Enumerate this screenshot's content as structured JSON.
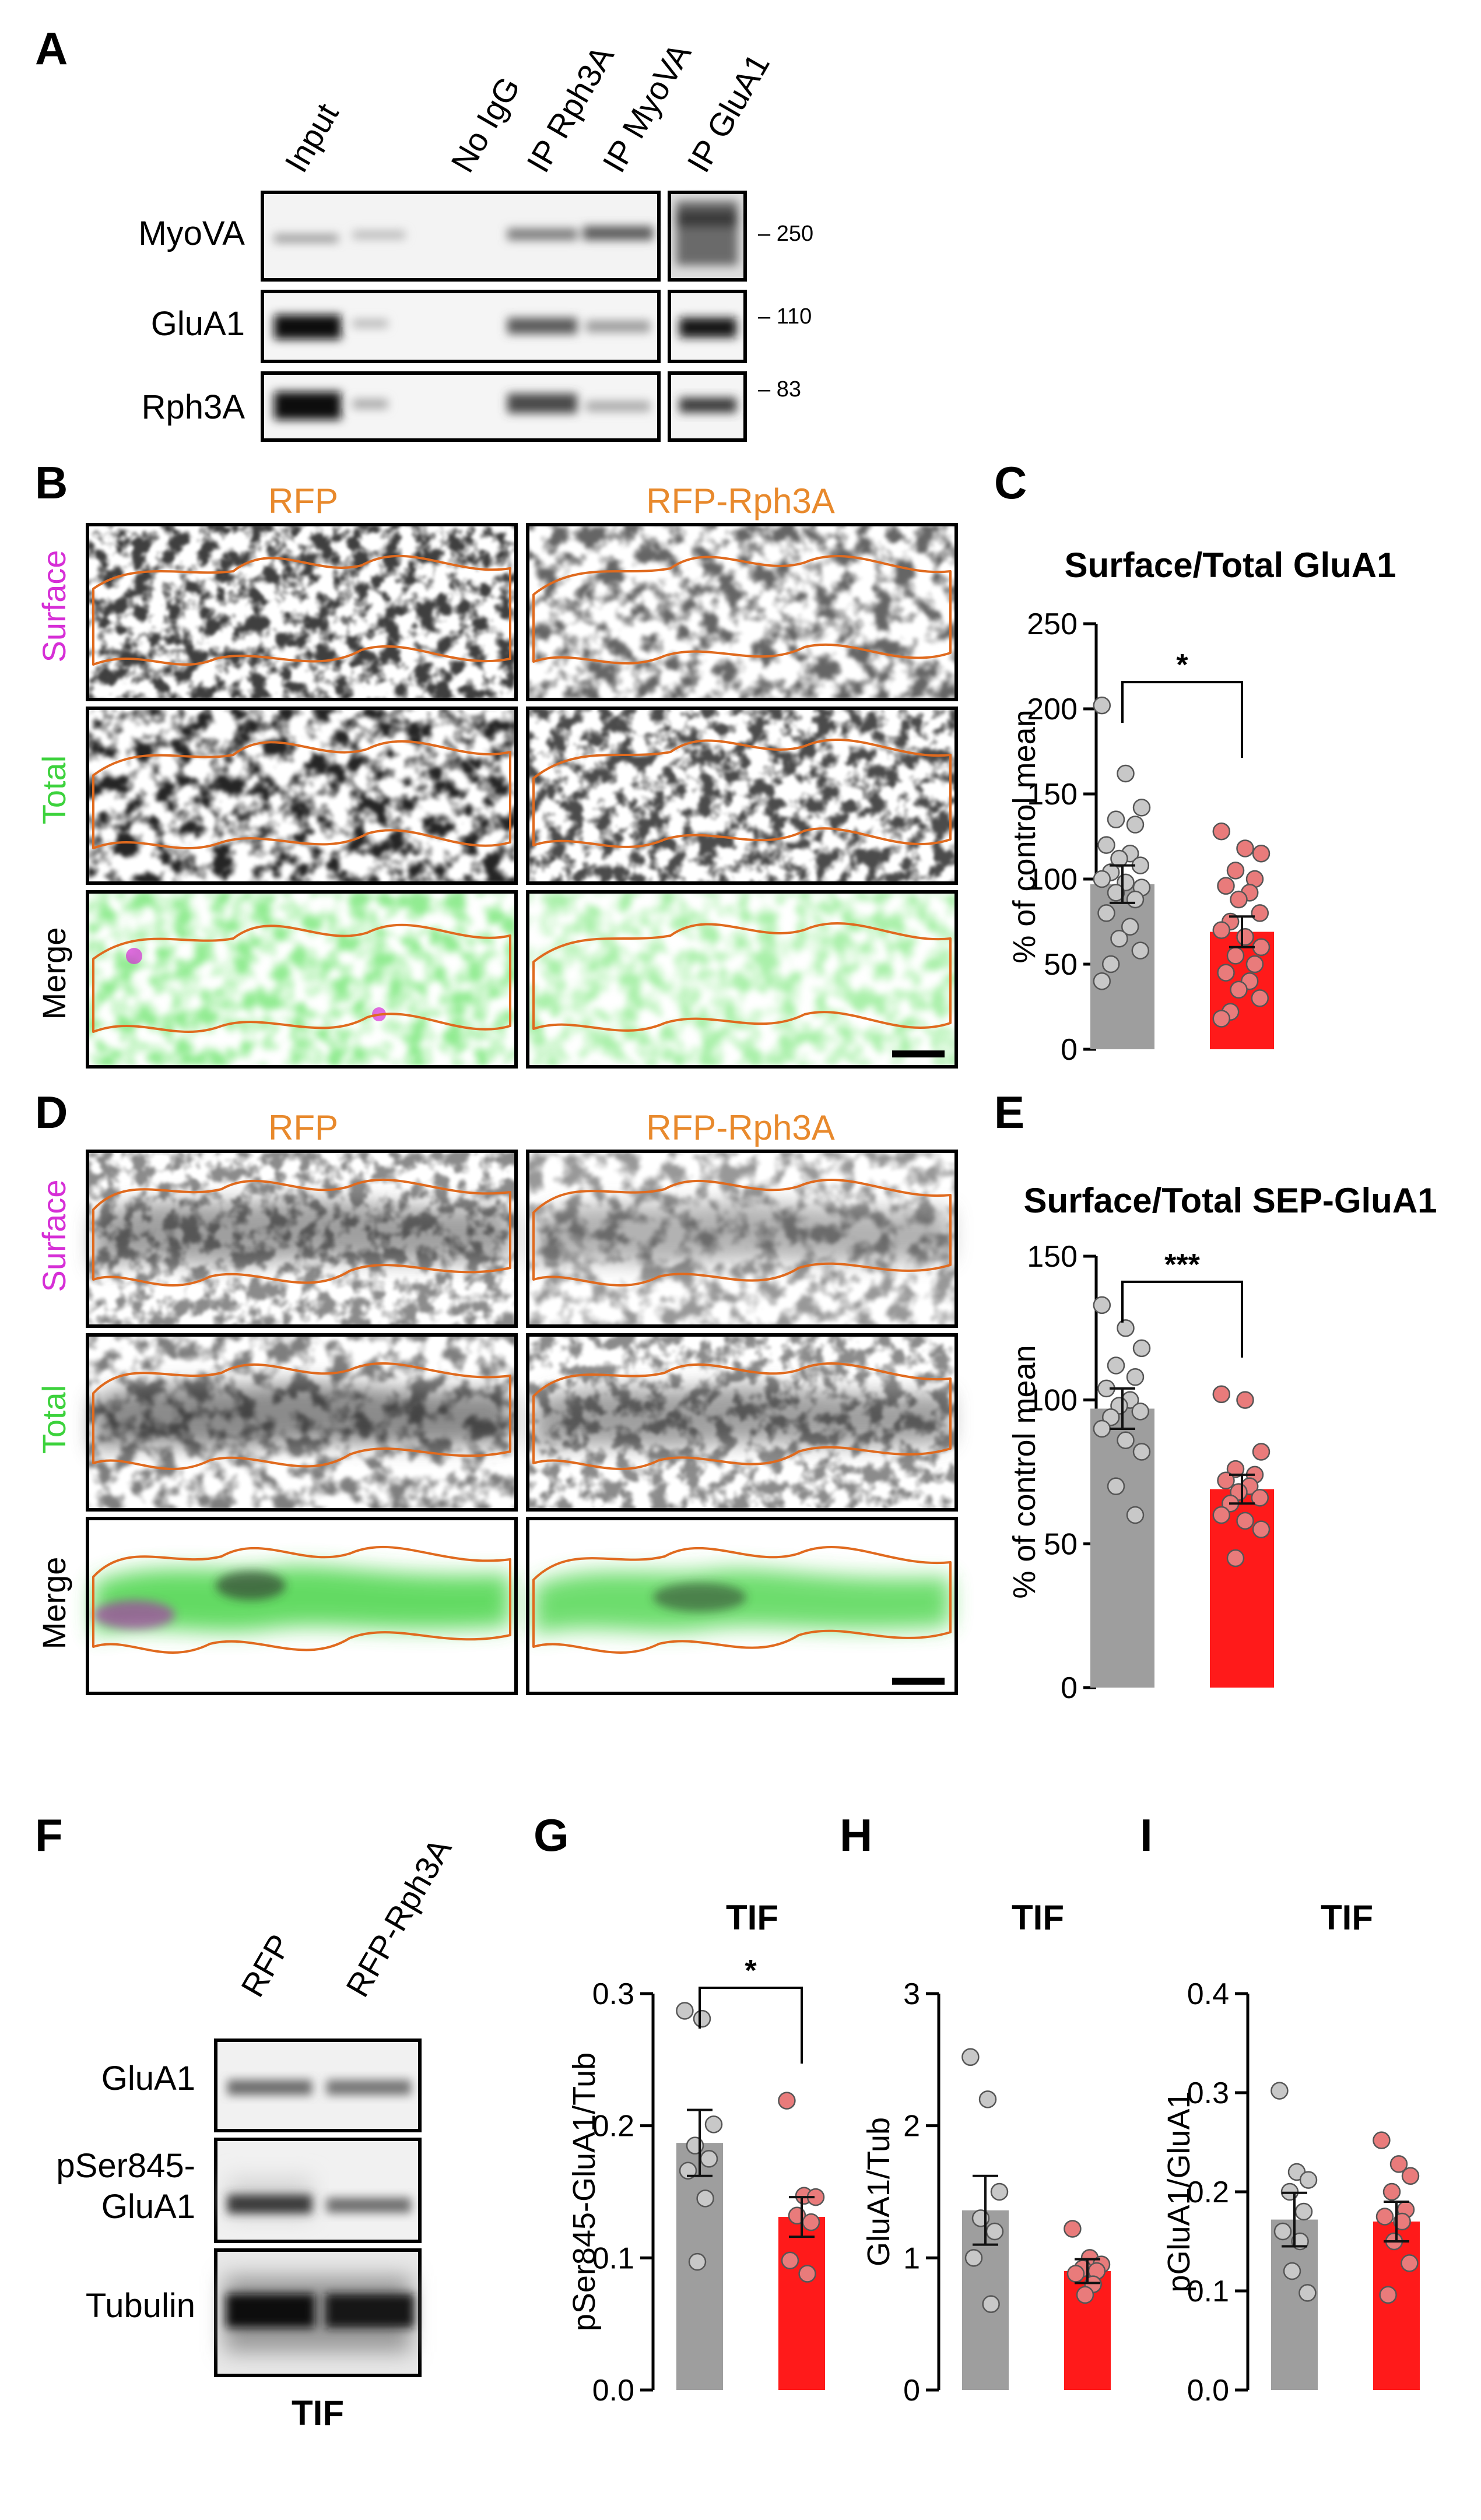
{
  "colors": {
    "control_bar": "#9E9E9E",
    "rph3a_bar": "#FF1A1A",
    "control_dot": "#C8C8C8",
    "rph3a_dot": "#E97B7B",
    "outline": "#E06A1E",
    "label_orange": "#E8892C",
    "surface_magenta": "#D62ED6",
    "total_green": "#3CD23C"
  },
  "panelA": {
    "letter": "A",
    "lanes": [
      "Input",
      "No IgG",
      "IP Rph3A",
      "IP MyoVA",
      "IP GluA1"
    ],
    "blots": [
      {
        "name": "MyoVA",
        "mw": "– 250"
      },
      {
        "name": "GluA1",
        "mw": "– 110"
      },
      {
        "name": "Rph3A",
        "mw": "– 83"
      }
    ]
  },
  "panelB": {
    "letter": "B",
    "conditions": [
      "RFP",
      "RFP-Rph3A"
    ],
    "rows": [
      "Surface",
      "Total",
      "Merge"
    ]
  },
  "panelD": {
    "letter": "D",
    "conditions": [
      "RFP",
      "RFP-Rph3A"
    ],
    "rows": [
      "Surface",
      "Total",
      "Merge"
    ]
  },
  "panelF": {
    "letter": "F",
    "lanes": [
      "RFP",
      "RFP-Rph3A"
    ],
    "blots": [
      "GluA1",
      "pSer845-",
      "GluA1",
      "Tubulin"
    ],
    "footer": "TIF"
  },
  "chart_data": [
    {
      "panel": "C",
      "type": "bar",
      "title": "Surface/Total GluA1",
      "ylabel": "% of control mean",
      "ylim": [
        0,
        250
      ],
      "yticks": [
        0,
        50,
        100,
        150,
        200,
        250
      ],
      "significance": "*",
      "series": [
        {
          "name": "RFP",
          "mean": 97,
          "sem": 11,
          "points": [
            202,
            162,
            142,
            135,
            132,
            120,
            115,
            112,
            108,
            104,
            100,
            98,
            95,
            92,
            88,
            80,
            72,
            65,
            58,
            50,
            40
          ]
        },
        {
          "name": "RFP-Rph3A",
          "mean": 69,
          "sem": 9,
          "points": [
            128,
            118,
            115,
            105,
            100,
            96,
            92,
            88,
            80,
            75,
            70,
            66,
            60,
            55,
            50,
            45,
            40,
            35,
            30,
            22,
            18
          ]
        }
      ]
    },
    {
      "panel": "E",
      "type": "bar",
      "title": "Surface/Total SEP-GluA1",
      "ylabel": "% of control mean",
      "ylim": [
        0,
        150
      ],
      "yticks": [
        0,
        50,
        100,
        150
      ],
      "significance": "***",
      "series": [
        {
          "name": "RFP",
          "mean": 97,
          "sem": 7,
          "points": [
            133,
            125,
            118,
            112,
            108,
            104,
            100,
            98,
            96,
            94,
            90,
            86,
            82,
            70,
            60
          ]
        },
        {
          "name": "RFP-Rph3A",
          "mean": 69,
          "sem": 5,
          "points": [
            102,
            100,
            82,
            76,
            74,
            72,
            70,
            68,
            66,
            64,
            60,
            58,
            55,
            45
          ]
        }
      ]
    },
    {
      "panel": "G",
      "type": "bar",
      "title": "TIF",
      "ylabel": "pSer845-GluA1/Tub",
      "ylim": [
        0,
        0.3
      ],
      "yticks": [
        "0.0",
        "0.1",
        "0.2",
        "0.3"
      ],
      "significance": "*",
      "series": [
        {
          "name": "RFP",
          "mean": 0.187,
          "sem": 0.025,
          "points": [
            0.287,
            0.281,
            0.201,
            0.185,
            0.175,
            0.166,
            0.145,
            0.097
          ]
        },
        {
          "name": "RFP-Rph3A",
          "mean": 0.131,
          "sem": 0.015,
          "points": [
            0.219,
            0.147,
            0.146,
            0.132,
            0.127,
            0.098,
            0.088
          ]
        }
      ]
    },
    {
      "panel": "H",
      "type": "bar",
      "title": "TIF",
      "ylabel": "GluA1/Tub",
      "ylim": [
        0,
        3
      ],
      "yticks": [
        "0",
        "1",
        "2",
        "3"
      ],
      "significance": "",
      "series": [
        {
          "name": "RFP",
          "mean": 1.36,
          "sem": 0.26,
          "points": [
            2.52,
            2.2,
            1.5,
            1.3,
            1.2,
            1.0,
            0.65
          ]
        },
        {
          "name": "RFP-Rph3A",
          "mean": 0.9,
          "sem": 0.09,
          "points": [
            1.22,
            1.0,
            0.95,
            0.92,
            0.9,
            0.88,
            0.8,
            0.72
          ]
        }
      ]
    },
    {
      "panel": "I",
      "type": "bar",
      "title": "TIF",
      "ylabel": "pGluA1/GluA1",
      "ylim": [
        0,
        0.4
      ],
      "yticks": [
        "0.0",
        "0.1",
        "0.2",
        "0.3",
        "0.4"
      ],
      "significance": "",
      "series": [
        {
          "name": "RFP",
          "mean": 0.172,
          "sem": 0.027,
          "points": [
            0.302,
            0.22,
            0.212,
            0.2,
            0.18,
            0.16,
            0.15,
            0.12,
            0.098
          ]
        },
        {
          "name": "RFP-Rph3A",
          "mean": 0.17,
          "sem": 0.02,
          "points": [
            0.252,
            0.228,
            0.216,
            0.2,
            0.182,
            0.175,
            0.17,
            0.15,
            0.128,
            0.096
          ]
        }
      ]
    }
  ]
}
